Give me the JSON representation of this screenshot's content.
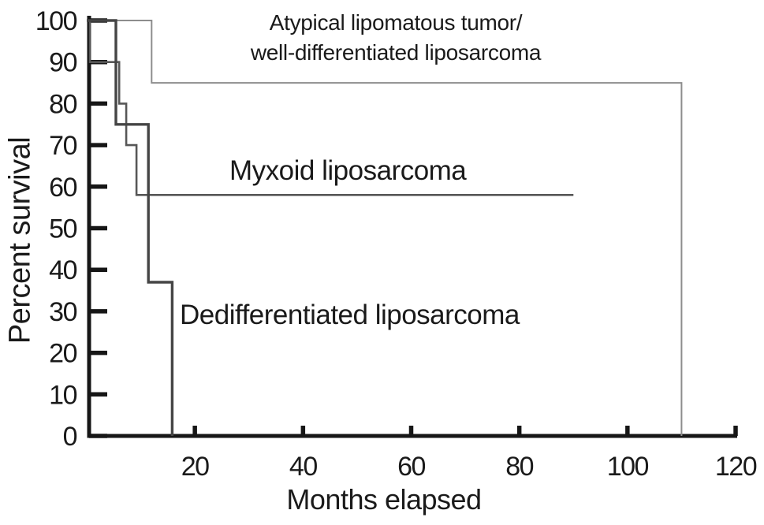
{
  "figure": {
    "background": "#ffffff",
    "text_color": "#1a1a1a",
    "axis_color": "#161616"
  },
  "labels": {
    "alt_line1": "Atypical lipomatous tumor/",
    "alt_line2": "well-differentiated liposarcoma",
    "myxoid": "Myxoid liposarcoma",
    "dedifferentiated": "Dedifferentiated liposarcoma"
  },
  "chart_data": {
    "type": "line",
    "subtype": "kaplan_meier_step",
    "title": "",
    "xlabel": "Months elapsed",
    "ylabel": "Percent survival",
    "xlim": [
      0,
      120
    ],
    "ylim": [
      0,
      100
    ],
    "x_ticks": [
      20,
      40,
      60,
      80,
      100,
      120
    ],
    "y_ticks": [
      0,
      10,
      20,
      30,
      40,
      50,
      60,
      70,
      80,
      90,
      100
    ],
    "grid": false,
    "legend_position": "inline-annotations",
    "series": [
      {
        "name": "Atypical lipomatous tumor/well-differentiated liposarcoma",
        "key": "alt-wdl",
        "color": "#8d8d8d",
        "stroke_width": 2,
        "points_months_percent": [
          [
            0,
            100
          ],
          [
            12,
            100
          ],
          [
            12,
            85
          ],
          [
            110,
            85
          ],
          [
            110,
            0
          ]
        ]
      },
      {
        "name": "Myxoid liposarcoma",
        "key": "myxoid",
        "color": "#575757",
        "stroke_width": 2.6,
        "points_months_percent": [
          [
            0,
            100
          ],
          [
            0.6,
            100
          ],
          [
            0.6,
            90
          ],
          [
            6,
            90
          ],
          [
            6,
            80
          ],
          [
            7.3,
            80
          ],
          [
            7.3,
            70
          ],
          [
            9.2,
            70
          ],
          [
            9.2,
            58
          ],
          [
            90,
            58
          ]
        ]
      },
      {
        "name": "Dedifferentiated liposarcoma",
        "key": "dedifferentiated",
        "color": "#454545",
        "stroke_width": 3.4,
        "points_months_percent": [
          [
            0,
            100
          ],
          [
            5.4,
            100
          ],
          [
            5.4,
            75
          ],
          [
            11.4,
            75
          ],
          [
            11.4,
            37
          ],
          [
            15.8,
            37
          ],
          [
            15.8,
            0
          ]
        ]
      }
    ]
  }
}
